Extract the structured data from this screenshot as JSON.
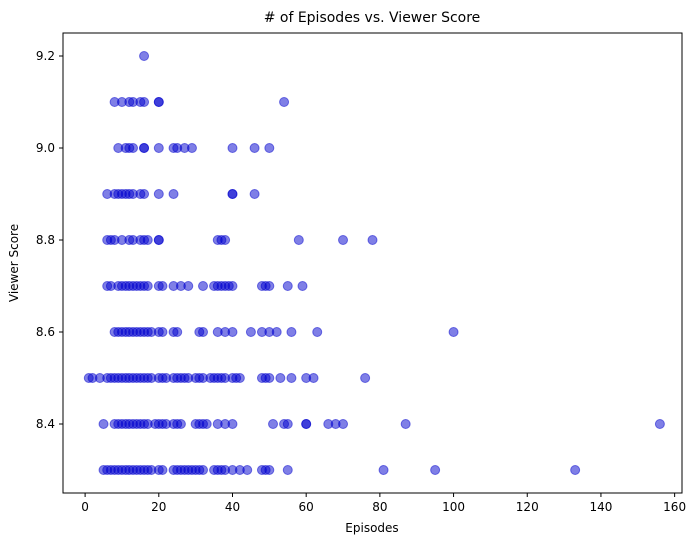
{
  "chart_data": {
    "type": "scatter",
    "title": "# of Episodes vs. Viewer Score",
    "xlabel": "Episodes",
    "ylabel": "Viewer Score",
    "xlim": [
      -6,
      162
    ],
    "ylim": [
      8.25,
      9.25
    ],
    "xticks": [
      0,
      20,
      40,
      60,
      80,
      100,
      120,
      140,
      160
    ],
    "yticks": [
      8.4,
      8.6,
      8.8,
      9.0,
      9.2
    ],
    "grid": false,
    "marker_color": "#0000cd",
    "marker_alpha": 0.5,
    "points": [
      [
        16,
        9.2
      ],
      [
        8,
        9.1
      ],
      [
        10,
        9.1
      ],
      [
        12,
        9.1
      ],
      [
        13,
        9.1
      ],
      [
        15,
        9.1
      ],
      [
        16,
        9.1
      ],
      [
        20,
        9.1
      ],
      [
        20,
        9.1
      ],
      [
        54,
        9.1
      ],
      [
        9,
        9.0
      ],
      [
        11,
        9.0
      ],
      [
        12,
        9.0
      ],
      [
        13,
        9.0
      ],
      [
        16,
        9.0
      ],
      [
        16,
        9.0
      ],
      [
        20,
        9.0
      ],
      [
        24,
        9.0
      ],
      [
        25,
        9.0
      ],
      [
        27,
        9.0
      ],
      [
        29,
        9.0
      ],
      [
        40,
        9.0
      ],
      [
        46,
        9.0
      ],
      [
        50,
        9.0
      ],
      [
        6,
        8.9
      ],
      [
        8,
        8.9
      ],
      [
        9,
        8.9
      ],
      [
        10,
        8.9
      ],
      [
        11,
        8.9
      ],
      [
        12,
        8.9
      ],
      [
        13,
        8.9
      ],
      [
        15,
        8.9
      ],
      [
        16,
        8.9
      ],
      [
        20,
        8.9
      ],
      [
        24,
        8.9
      ],
      [
        40,
        8.9
      ],
      [
        40,
        8.9
      ],
      [
        46,
        8.9
      ],
      [
        6,
        8.8
      ],
      [
        7,
        8.8
      ],
      [
        8,
        8.8
      ],
      [
        10,
        8.8
      ],
      [
        12,
        8.8
      ],
      [
        13,
        8.8
      ],
      [
        15,
        8.8
      ],
      [
        16,
        8.8
      ],
      [
        17,
        8.8
      ],
      [
        20,
        8.8
      ],
      [
        20,
        8.8
      ],
      [
        36,
        8.8
      ],
      [
        37,
        8.8
      ],
      [
        38,
        8.8
      ],
      [
        58,
        8.8
      ],
      [
        70,
        8.8
      ],
      [
        78,
        8.8
      ],
      [
        6,
        8.7
      ],
      [
        7,
        8.7
      ],
      [
        9,
        8.7
      ],
      [
        10,
        8.7
      ],
      [
        11,
        8.7
      ],
      [
        12,
        8.7
      ],
      [
        13,
        8.7
      ],
      [
        14,
        8.7
      ],
      [
        15,
        8.7
      ],
      [
        16,
        8.7
      ],
      [
        17,
        8.7
      ],
      [
        20,
        8.7
      ],
      [
        21,
        8.7
      ],
      [
        24,
        8.7
      ],
      [
        26,
        8.7
      ],
      [
        28,
        8.7
      ],
      [
        32,
        8.7
      ],
      [
        35,
        8.7
      ],
      [
        36,
        8.7
      ],
      [
        37,
        8.7
      ],
      [
        38,
        8.7
      ],
      [
        39,
        8.7
      ],
      [
        40,
        8.7
      ],
      [
        48,
        8.7
      ],
      [
        49,
        8.7
      ],
      [
        50,
        8.7
      ],
      [
        55,
        8.7
      ],
      [
        59,
        8.7
      ],
      [
        8,
        8.6
      ],
      [
        9,
        8.6
      ],
      [
        10,
        8.6
      ],
      [
        11,
        8.6
      ],
      [
        12,
        8.6
      ],
      [
        13,
        8.6
      ],
      [
        14,
        8.6
      ],
      [
        15,
        8.6
      ],
      [
        16,
        8.6
      ],
      [
        17,
        8.6
      ],
      [
        18,
        8.6
      ],
      [
        20,
        8.6
      ],
      [
        21,
        8.6
      ],
      [
        24,
        8.6
      ],
      [
        25,
        8.6
      ],
      [
        31,
        8.6
      ],
      [
        32,
        8.6
      ],
      [
        36,
        8.6
      ],
      [
        38,
        8.6
      ],
      [
        40,
        8.6
      ],
      [
        45,
        8.6
      ],
      [
        48,
        8.6
      ],
      [
        50,
        8.6
      ],
      [
        52,
        8.6
      ],
      [
        56,
        8.6
      ],
      [
        63,
        8.6
      ],
      [
        100,
        8.6
      ],
      [
        1,
        8.5
      ],
      [
        2,
        8.5
      ],
      [
        4,
        8.5
      ],
      [
        6,
        8.5
      ],
      [
        7,
        8.5
      ],
      [
        8,
        8.5
      ],
      [
        9,
        8.5
      ],
      [
        10,
        8.5
      ],
      [
        11,
        8.5
      ],
      [
        12,
        8.5
      ],
      [
        13,
        8.5
      ],
      [
        14,
        8.5
      ],
      [
        15,
        8.5
      ],
      [
        16,
        8.5
      ],
      [
        17,
        8.5
      ],
      [
        18,
        8.5
      ],
      [
        20,
        8.5
      ],
      [
        21,
        8.5
      ],
      [
        22,
        8.5
      ],
      [
        24,
        8.5
      ],
      [
        25,
        8.5
      ],
      [
        26,
        8.5
      ],
      [
        27,
        8.5
      ],
      [
        28,
        8.5
      ],
      [
        30,
        8.5
      ],
      [
        31,
        8.5
      ],
      [
        32,
        8.5
      ],
      [
        34,
        8.5
      ],
      [
        35,
        8.5
      ],
      [
        36,
        8.5
      ],
      [
        37,
        8.5
      ],
      [
        38,
        8.5
      ],
      [
        40,
        8.5
      ],
      [
        41,
        8.5
      ],
      [
        42,
        8.5
      ],
      [
        48,
        8.5
      ],
      [
        49,
        8.5
      ],
      [
        50,
        8.5
      ],
      [
        53,
        8.5
      ],
      [
        56,
        8.5
      ],
      [
        60,
        8.5
      ],
      [
        62,
        8.5
      ],
      [
        76,
        8.5
      ],
      [
        5,
        8.4
      ],
      [
        8,
        8.4
      ],
      [
        9,
        8.4
      ],
      [
        10,
        8.4
      ],
      [
        11,
        8.4
      ],
      [
        12,
        8.4
      ],
      [
        13,
        8.4
      ],
      [
        14,
        8.4
      ],
      [
        15,
        8.4
      ],
      [
        16,
        8.4
      ],
      [
        17,
        8.4
      ],
      [
        19,
        8.4
      ],
      [
        20,
        8.4
      ],
      [
        21,
        8.4
      ],
      [
        22,
        8.4
      ],
      [
        24,
        8.4
      ],
      [
        25,
        8.4
      ],
      [
        26,
        8.4
      ],
      [
        30,
        8.4
      ],
      [
        31,
        8.4
      ],
      [
        32,
        8.4
      ],
      [
        33,
        8.4
      ],
      [
        36,
        8.4
      ],
      [
        38,
        8.4
      ],
      [
        40,
        8.4
      ],
      [
        51,
        8.4
      ],
      [
        54,
        8.4
      ],
      [
        55,
        8.4
      ],
      [
        60,
        8.4
      ],
      [
        60,
        8.4
      ],
      [
        66,
        8.4
      ],
      [
        68,
        8.4
      ],
      [
        70,
        8.4
      ],
      [
        87,
        8.4
      ],
      [
        156,
        8.4
      ],
      [
        5,
        8.3
      ],
      [
        6,
        8.3
      ],
      [
        7,
        8.3
      ],
      [
        8,
        8.3
      ],
      [
        9,
        8.3
      ],
      [
        10,
        8.3
      ],
      [
        11,
        8.3
      ],
      [
        12,
        8.3
      ],
      [
        13,
        8.3
      ],
      [
        14,
        8.3
      ],
      [
        15,
        8.3
      ],
      [
        16,
        8.3
      ],
      [
        17,
        8.3
      ],
      [
        18,
        8.3
      ],
      [
        20,
        8.3
      ],
      [
        21,
        8.3
      ],
      [
        24,
        8.3
      ],
      [
        25,
        8.3
      ],
      [
        26,
        8.3
      ],
      [
        27,
        8.3
      ],
      [
        28,
        8.3
      ],
      [
        29,
        8.3
      ],
      [
        30,
        8.3
      ],
      [
        31,
        8.3
      ],
      [
        32,
        8.3
      ],
      [
        35,
        8.3
      ],
      [
        36,
        8.3
      ],
      [
        37,
        8.3
      ],
      [
        38,
        8.3
      ],
      [
        40,
        8.3
      ],
      [
        42,
        8.3
      ],
      [
        44,
        8.3
      ],
      [
        48,
        8.3
      ],
      [
        49,
        8.3
      ],
      [
        50,
        8.3
      ],
      [
        55,
        8.3
      ],
      [
        81,
        8.3
      ],
      [
        95,
        8.3
      ],
      [
        133,
        8.3
      ]
    ]
  }
}
